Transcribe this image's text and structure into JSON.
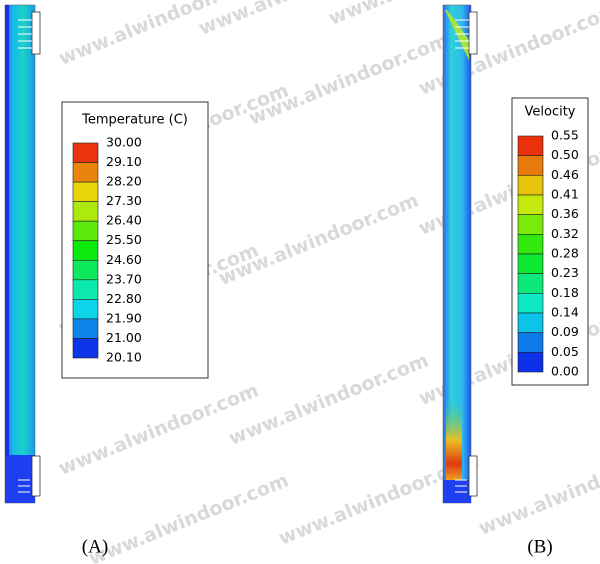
{
  "panels": [
    {
      "caption": "(A)",
      "legend": {
        "title": "Temperature (C)",
        "labels": [
          "30.00",
          "29.10",
          "28.20",
          "27.30",
          "26.40",
          "25.50",
          "24.60",
          "23.70",
          "22.80",
          "21.90",
          "21.00",
          "20.10"
        ]
      }
    },
    {
      "caption": "(B)",
      "legend": {
        "title": "Velocity",
        "labels": [
          "0.55",
          "0.50",
          "0.46",
          "0.41",
          "0.36",
          "0.32",
          "0.28",
          "0.23",
          "0.18",
          "0.14",
          "0.09",
          "0.05",
          "0.00"
        ]
      }
    }
  ],
  "watermark": "www.alwindoor.com"
}
